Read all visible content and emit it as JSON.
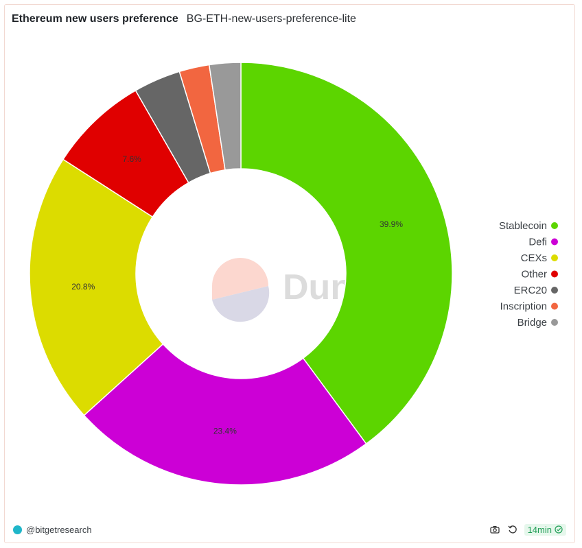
{
  "header": {
    "title": "Ethereum new users preference",
    "subtitle": "BG-ETH-new-users-preference-lite"
  },
  "watermark": {
    "text": "Dune"
  },
  "footer": {
    "author": "@bitgetresearch",
    "freshness": "14min"
  },
  "icons": {
    "camera": "camera-icon",
    "refresh": "refresh-icon",
    "check": "check-circle-icon"
  },
  "chart_data": {
    "type": "pie",
    "donut": true,
    "categories": [
      "Stablecoin",
      "Defi",
      "CEXs",
      "Other",
      "ERC20",
      "Inscription",
      "Bridge"
    ],
    "values": [
      39.9,
      23.4,
      20.8,
      7.6,
      3.6,
      2.3,
      2.4
    ],
    "labels": [
      "39.9%",
      "23.4%",
      "20.8%",
      "7.6%",
      "",
      "",
      ""
    ],
    "colors": [
      "#5cd500",
      "#cc00d6",
      "#dcdc00",
      "#e00000",
      "#666666",
      "#f26640",
      "#999999"
    ],
    "legend_position": "right"
  }
}
